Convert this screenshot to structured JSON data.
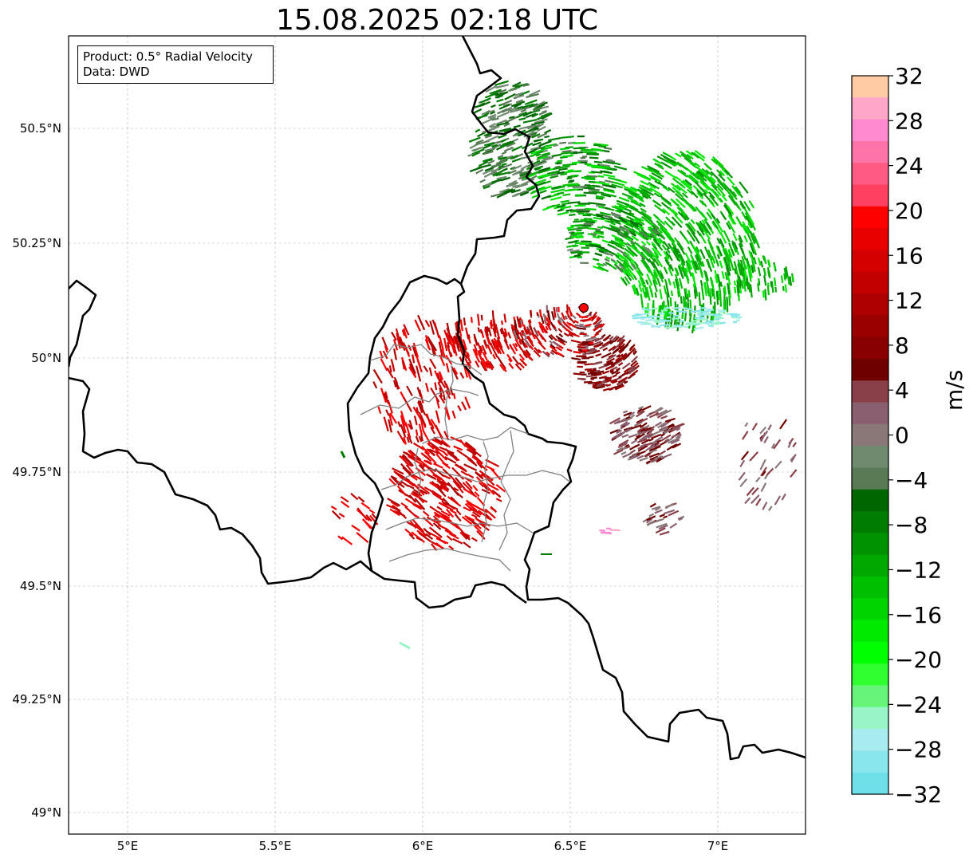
{
  "title": "15.08.2025 02:18 UTC",
  "legend": {
    "product": "Product: 0.5° Radial Velocity",
    "data": "Data: DWD"
  },
  "axes": {
    "lon_ticks": [
      "5°E",
      "5.5°E",
      "6°E",
      "6.5°E",
      "7°E"
    ],
    "lat_ticks": [
      "50.5°N",
      "50.25°N",
      "50°N",
      "49.75°N",
      "49.5°N",
      "49.25°N",
      "49°N"
    ]
  },
  "colorbar": {
    "unit": "m/s",
    "tick_labels": [
      "32",
      "28",
      "24",
      "20",
      "16",
      "12",
      "8",
      "4",
      "0",
      "−4",
      "−8",
      "−12",
      "−16",
      "−20",
      "−24",
      "−28",
      "−32"
    ],
    "range": [
      -32,
      32
    ],
    "colors_top_to_bottom": [
      "#ffcba4",
      "#ffa6c9",
      "#ff8ad0",
      "#ff74a8",
      "#ff5a84",
      "#ff4060",
      "#ff0000",
      "#e80000",
      "#d40000",
      "#c20000",
      "#ae0000",
      "#9a0000",
      "#880000",
      "#6e0000",
      "#8a4048",
      "#8a6070",
      "#8a7878",
      "#708a70",
      "#5a7a56",
      "#006600",
      "#007c00",
      "#009200",
      "#00a800",
      "#00be00",
      "#00d400",
      "#00ea00",
      "#00ff00",
      "#30ff30",
      "#66f57a",
      "#99f5c8",
      "#a8ecf0",
      "#88e6ec",
      "#70e0e8"
    ]
  },
  "radar_site_color": "#ff0000",
  "colors": {
    "border": "#000000",
    "admin_border": "#808080",
    "grid": "#b0b0b0"
  }
}
